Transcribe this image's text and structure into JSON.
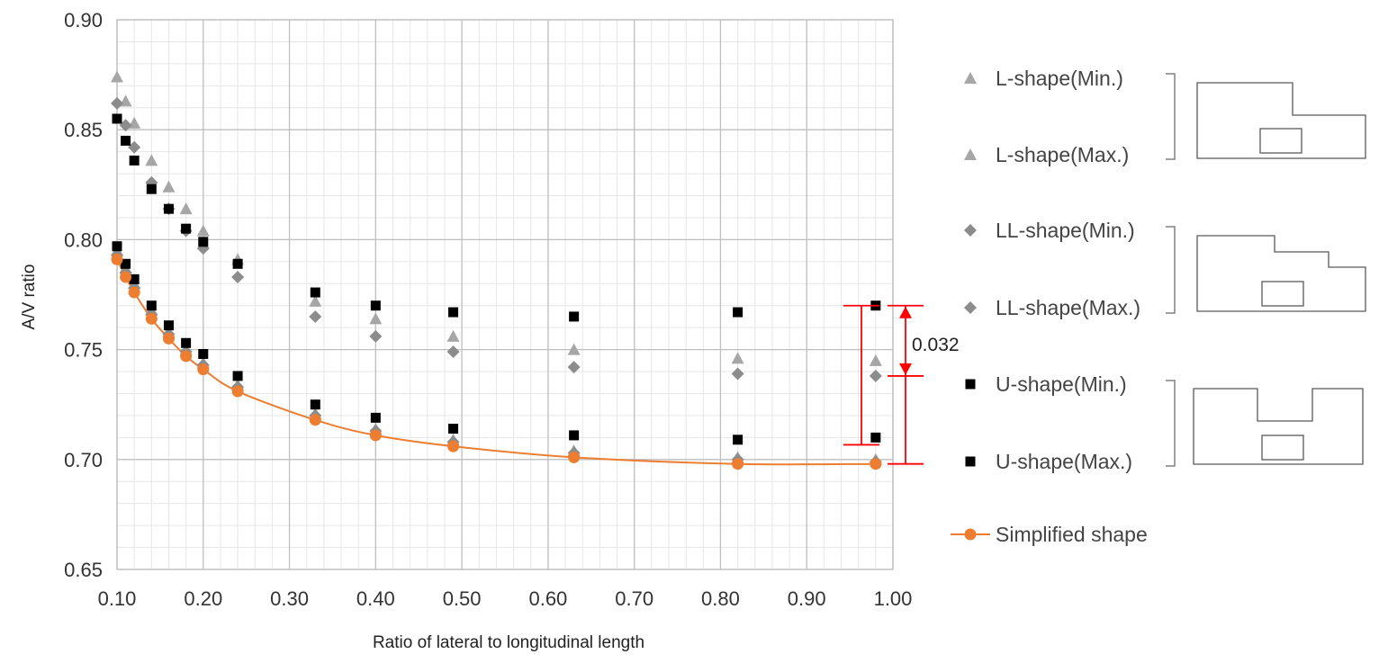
{
  "chart_data": {
    "type": "scatter",
    "title": "",
    "xlabel": "Ratio of lateral to longitudinal length",
    "ylabel": "A/V ratio",
    "xlim": [
      0.1,
      1.0
    ],
    "ylim": [
      0.65,
      0.9
    ],
    "x_ticks": [
      "0.10",
      "0.20",
      "0.30",
      "0.40",
      "0.50",
      "0.60",
      "0.70",
      "0.80",
      "0.90",
      "1.00"
    ],
    "y_ticks": [
      "0.65",
      "0.70",
      "0.75",
      "0.80",
      "0.85",
      "0.90"
    ],
    "grid": "major and minor",
    "legend_position": "right",
    "series": [
      {
        "name": "L-shape(Min.)",
        "marker": "triangle",
        "color": "#a6a6a6",
        "x": [
          0.1,
          0.11,
          0.12,
          0.14,
          0.16,
          0.18,
          0.2,
          0.24,
          0.33,
          0.4,
          0.49,
          0.63,
          0.82,
          0.98
        ],
        "y": [
          0.795,
          0.787,
          0.78,
          0.768,
          0.758,
          0.75,
          0.744,
          0.734,
          0.721,
          0.714,
          0.709,
          0.704,
          0.701,
          0.7
        ]
      },
      {
        "name": "L-shape(Max.)",
        "marker": "triangle",
        "color": "#a6a6a6",
        "x": [
          0.1,
          0.11,
          0.12,
          0.14,
          0.16,
          0.18,
          0.2,
          0.24,
          0.33,
          0.4,
          0.49,
          0.63,
          0.82,
          0.98
        ],
        "y": [
          0.874,
          0.863,
          0.853,
          0.836,
          0.824,
          0.814,
          0.804,
          0.791,
          0.772,
          0.764,
          0.756,
          0.75,
          0.746,
          0.745
        ]
      },
      {
        "name": "LL-shape(Min.)",
        "marker": "diamond",
        "color": "#8c8c8c",
        "x": [
          0.1,
          0.11,
          0.12,
          0.14,
          0.16,
          0.18,
          0.2,
          0.24,
          0.33,
          0.4,
          0.49,
          0.63,
          0.82,
          0.98
        ],
        "y": [
          0.793,
          0.785,
          0.778,
          0.766,
          0.757,
          0.749,
          0.743,
          0.733,
          0.72,
          0.713,
          0.708,
          0.703,
          0.7,
          0.699
        ]
      },
      {
        "name": "LL-shape(Max.)",
        "marker": "diamond",
        "color": "#8c8c8c",
        "x": [
          0.1,
          0.11,
          0.12,
          0.14,
          0.16,
          0.18,
          0.2,
          0.24,
          0.33,
          0.4,
          0.49,
          0.63,
          0.82,
          0.98
        ],
        "y": [
          0.862,
          0.852,
          0.842,
          0.826,
          0.814,
          0.804,
          0.796,
          0.783,
          0.765,
          0.756,
          0.749,
          0.742,
          0.739,
          0.738
        ]
      },
      {
        "name": "U-shape(Min.)",
        "marker": "square",
        "color": "#000000",
        "x": [
          0.1,
          0.11,
          0.12,
          0.14,
          0.16,
          0.18,
          0.2,
          0.24,
          0.33,
          0.4,
          0.49,
          0.63,
          0.82,
          0.98
        ],
        "y": [
          0.797,
          0.789,
          0.782,
          0.77,
          0.761,
          0.753,
          0.748,
          0.738,
          0.725,
          0.719,
          0.714,
          0.711,
          0.709,
          0.71
        ]
      },
      {
        "name": "U-shape(Max.)",
        "marker": "square",
        "color": "#000000",
        "x": [
          0.1,
          0.11,
          0.12,
          0.14,
          0.16,
          0.18,
          0.2,
          0.24,
          0.33,
          0.4,
          0.49,
          0.63,
          0.82,
          0.98
        ],
        "y": [
          0.855,
          0.845,
          0.836,
          0.823,
          0.814,
          0.805,
          0.799,
          0.789,
          0.776,
          0.77,
          0.767,
          0.765,
          0.767,
          0.77
        ]
      },
      {
        "name": "Simplified shape",
        "marker": "circle-line",
        "color": "#ed7d31",
        "x": [
          0.1,
          0.11,
          0.12,
          0.14,
          0.16,
          0.18,
          0.2,
          0.24,
          0.33,
          0.4,
          0.49,
          0.63,
          0.82,
          0.98
        ],
        "y": [
          0.791,
          0.783,
          0.776,
          0.764,
          0.755,
          0.747,
          0.741,
          0.731,
          0.718,
          0.711,
          0.706,
          0.701,
          0.698,
          0.698
        ]
      }
    ],
    "annotations": [
      {
        "text": "0.032",
        "x": 0.98,
        "y_from": 0.77,
        "y_to": 0.738,
        "color": "#ff0000"
      }
    ]
  }
}
